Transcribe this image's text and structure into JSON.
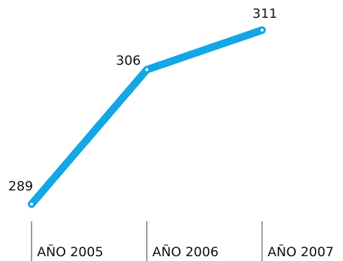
{
  "chart_data": {
    "type": "line",
    "categories": [
      "AÑO 2005",
      "AÑO 2006",
      "AÑO 2007"
    ],
    "series": [
      {
        "values": [
          289,
          306,
          311
        ]
      }
    ],
    "title": "",
    "xlabel": "",
    "ylabel": "",
    "ylim": [
      289,
      311
    ],
    "grid": false,
    "colors": {
      "line": "#14A6E5"
    }
  }
}
